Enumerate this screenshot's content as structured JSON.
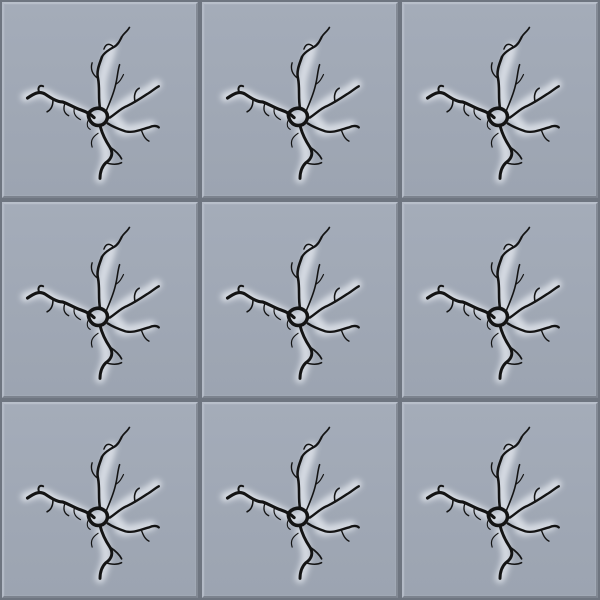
{
  "game": {
    "grid": {
      "rows": 3,
      "cols": 3
    },
    "tiles": [
      {
        "row": 0,
        "col": 0,
        "state": "cracked"
      },
      {
        "row": 0,
        "col": 1,
        "state": "cracked"
      },
      {
        "row": 0,
        "col": 2,
        "state": "cracked"
      },
      {
        "row": 1,
        "col": 0,
        "state": "cracked"
      },
      {
        "row": 1,
        "col": 1,
        "state": "cracked"
      },
      {
        "row": 1,
        "col": 2,
        "state": "cracked"
      },
      {
        "row": 2,
        "col": 0,
        "state": "cracked"
      },
      {
        "row": 2,
        "col": 1,
        "state": "cracked"
      },
      {
        "row": 2,
        "col": 2,
        "state": "cracked"
      }
    ],
    "colors": {
      "tile_face": "#a0a8b5",
      "grout": "#6e7580",
      "crack": "#141414",
      "crack_glow": "#e8ecf2"
    }
  }
}
